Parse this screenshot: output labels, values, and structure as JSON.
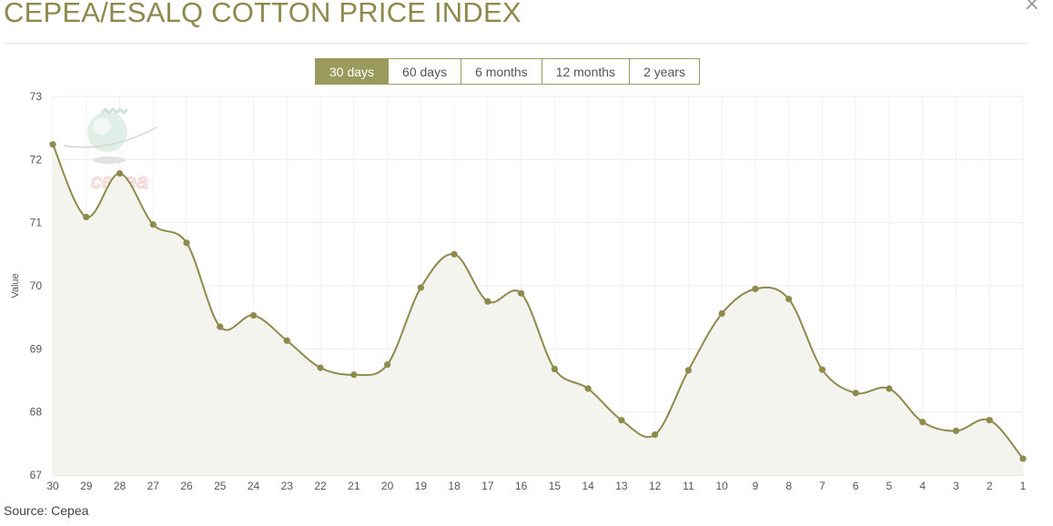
{
  "header": {
    "title": "CEPEA/ESALQ COTTON PRICE INDEX",
    "close_glyph": "×"
  },
  "tabs": [
    {
      "label": "30 days",
      "active": true
    },
    {
      "label": "60 days",
      "active": false
    },
    {
      "label": "6 months",
      "active": false
    },
    {
      "label": "12 months",
      "active": false
    },
    {
      "label": "2 years",
      "active": false
    }
  ],
  "watermark": {
    "text": "cepea"
  },
  "footer": {
    "source": "Source: Cepea"
  },
  "colors": {
    "accent": "#9a9a5c",
    "line": "#8e8a4e",
    "area": "#f4f4ee",
    "grid": "#ececec"
  },
  "chart_data": {
    "type": "area",
    "ylabel": "Value",
    "ylim": [
      67,
      73
    ],
    "yticks": [
      67,
      68,
      69,
      70,
      71,
      72,
      73
    ],
    "grid": true,
    "categories": [
      "30",
      "29",
      "28",
      "27",
      "26",
      "25",
      "24",
      "23",
      "22",
      "21",
      "20",
      "19",
      "18",
      "17",
      "16",
      "15",
      "14",
      "13",
      "12",
      "11",
      "10",
      "9",
      "8",
      "7",
      "6",
      "5",
      "4",
      "3",
      "2",
      "1"
    ],
    "series": [
      {
        "values": [
          72.24,
          71.09,
          71.78,
          70.97,
          70.68,
          69.35,
          69.53,
          69.13,
          68.7,
          68.59,
          68.75,
          69.97,
          70.5,
          69.75,
          69.88,
          68.68,
          68.37,
          67.87,
          67.64,
          68.66,
          69.56,
          69.95,
          69.79,
          68.67,
          68.3,
          68.37,
          67.84,
          67.7,
          67.87,
          67.26
        ]
      }
    ]
  }
}
